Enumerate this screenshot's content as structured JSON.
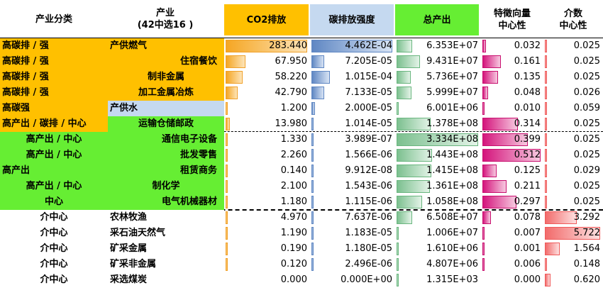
{
  "header": {
    "col_category": "产业分类",
    "col_industry_line1": "产业",
    "col_industry_line2": "(42中选16 )",
    "col_co2": "CO2排放",
    "col_intensity": "碳排放强度",
    "col_output": "总产出",
    "col_eigen_line1": "特徵向量",
    "col_eigen_line2": "中心性",
    "col_between_line1": "介数",
    "col_between_line2": "中心性"
  },
  "colors": {
    "orange": "#ffc000",
    "green": "#66ee33",
    "lightblue": "#c5d9f0",
    "co2_header": "#ffc000",
    "intensity_header": "#c5d9f0",
    "output_header": "#66ee33"
  },
  "rows": [
    {
      "category": "高碳排 / 强",
      "industry": "产供燃气",
      "co2": "283.440",
      "intensity": "4.462E-04",
      "output": "6.353E+07",
      "eigen": "0.032",
      "between": "0.025",
      "co2_v": 283.44,
      "int_v": 0.0004462,
      "out_v": 63530000.0,
      "eig_v": 0.032,
      "btw_v": 0.025,
      "cat_color": "orange",
      "ind_color": "orange",
      "cat_align": "left",
      "ind_align": "left"
    },
    {
      "category": "高碳排 / 强",
      "industry": "住宿餐饮",
      "co2": "67.950",
      "intensity": "7.205E-05",
      "output": "9.431E+07",
      "eigen": "0.161",
      "between": "0.025",
      "co2_v": 67.95,
      "int_v": 7.205e-05,
      "out_v": 94310000.0,
      "eig_v": 0.161,
      "btw_v": 0.025,
      "cat_color": "orange",
      "ind_color": "orange",
      "cat_align": "left",
      "ind_align": "right"
    },
    {
      "category": "高碳排 / 强",
      "industry": "制非金属",
      "co2": "58.220",
      "intensity": "1.015E-04",
      "output": "5.736E+07",
      "eigen": "0.135",
      "between": "0.025",
      "co2_v": 58.22,
      "int_v": 0.0001015,
      "out_v": 57360000.0,
      "eig_v": 0.135,
      "btw_v": 0.025,
      "cat_color": "orange",
      "ind_color": "orange",
      "cat_align": "left",
      "ind_align": "center"
    },
    {
      "category": "高碳排 / 强",
      "industry": "加工金属冶炼",
      "co2": "42.790",
      "intensity": "7.133E-05",
      "output": "5.999E+07",
      "eigen": "0.048",
      "between": "0.026",
      "co2_v": 42.79,
      "int_v": 7.133e-05,
      "out_v": 59990000.0,
      "eig_v": 0.048,
      "btw_v": 0.026,
      "cat_color": "orange",
      "ind_color": "orange",
      "cat_align": "left",
      "ind_align": "center"
    },
    {
      "category": "高碳强",
      "industry": "产供水",
      "co2": "1.200",
      "intensity": "2.000E-05",
      "output": "6.001E+06",
      "eigen": "0.010",
      "between": "0.059",
      "co2_v": 1.2,
      "int_v": 2e-05,
      "out_v": 6001000.0,
      "eig_v": 0.01,
      "btw_v": 0.059,
      "cat_color": "orange",
      "ind_color": "lightblue",
      "cat_align": "left",
      "ind_align": "left"
    },
    {
      "category": "高产出 / 碳排 / 中心",
      "industry": "运输仓储邮政",
      "co2": "13.980",
      "intensity": "1.014E-05",
      "output": "1.378E+08",
      "eigen": "0.314",
      "between": "0.025",
      "co2_v": 13.98,
      "int_v": 1.014e-05,
      "out_v": 137800000.0,
      "eig_v": 0.314,
      "btw_v": 0.025,
      "cat_color": "orange",
      "ind_color": "green",
      "cat_align": "left",
      "ind_align": "center"
    },
    {
      "category": "高产出 / 中心",
      "industry": "通信电子设备",
      "co2": "1.330",
      "intensity": "3.989E-07",
      "output": "3.334E+08",
      "eigen": "0.399",
      "between": "0.025",
      "co2_v": 1.33,
      "int_v": 3.989e-07,
      "out_v": 333400000.0,
      "eig_v": 0.399,
      "btw_v": 0.025,
      "cat_color": "green",
      "ind_color": "green",
      "cat_align": "center",
      "ind_align": "right"
    },
    {
      "category": "高产出 / 中心",
      "industry": "批发零售",
      "co2": "2.260",
      "intensity": "1.566E-06",
      "output": "1.443E+08",
      "eigen": "0.512",
      "between": "0.025",
      "co2_v": 2.26,
      "int_v": 1.566e-06,
      "out_v": 144300000.0,
      "eig_v": 0.512,
      "btw_v": 0.025,
      "cat_color": "green",
      "ind_color": "green",
      "cat_align": "center",
      "ind_align": "right"
    },
    {
      "category": "高产出",
      "industry": "租赁商务",
      "co2": "0.140",
      "intensity": "9.912E-08",
      "output": "1.415E+08",
      "eigen": "0.125",
      "between": "0.029",
      "co2_v": 0.14,
      "int_v": 9.912e-08,
      "out_v": 141500000.0,
      "eig_v": 0.125,
      "btw_v": 0.029,
      "cat_color": "green",
      "ind_color": "green",
      "cat_align": "left",
      "ind_align": "right"
    },
    {
      "category": "高产出 / 中心",
      "industry": "制化学",
      "co2": "2.100",
      "intensity": "1.543E-06",
      "output": "1.361E+08",
      "eigen": "0.211",
      "between": "0.025",
      "co2_v": 2.1,
      "int_v": 1.543e-06,
      "out_v": 136100000.0,
      "eig_v": 0.211,
      "btw_v": 0.025,
      "cat_color": "green",
      "ind_color": "green",
      "cat_align": "center",
      "ind_align": "center"
    },
    {
      "category": "中心",
      "industry": "电气机械器材",
      "co2": "1.180",
      "intensity": "1.115E-06",
      "output": "1.058E+08",
      "eigen": "0.297",
      "between": "0.025",
      "co2_v": 1.18,
      "int_v": 1.115e-06,
      "out_v": 105800000.0,
      "eig_v": 0.297,
      "btw_v": 0.025,
      "cat_color": "green",
      "ind_color": "green",
      "cat_align": "center",
      "ind_align": "right"
    },
    {
      "category": "介中心",
      "industry": "农林牧渔",
      "co2": "4.970",
      "intensity": "7.637E-06",
      "output": "6.508E+07",
      "eigen": "0.078",
      "between": "3.292",
      "co2_v": 4.97,
      "int_v": 7.637e-06,
      "out_v": 65080000.0,
      "eig_v": 0.078,
      "btw_v": 3.292,
      "cat_color": "white",
      "ind_color": "white",
      "cat_align": "center",
      "ind_align": "left"
    },
    {
      "category": "介中心",
      "industry": "采石油天然气",
      "co2": "1.190",
      "intensity": "1.183E-05",
      "output": "1.006E+07",
      "eigen": "0.007",
      "between": "5.722",
      "co2_v": 1.19,
      "int_v": 1.183e-05,
      "out_v": 10060000.0,
      "eig_v": 0.007,
      "btw_v": 5.722,
      "cat_color": "white",
      "ind_color": "white",
      "cat_align": "center",
      "ind_align": "left"
    },
    {
      "category": "介中心",
      "industry": "矿采金属",
      "co2": "0.190",
      "intensity": "1.180E-05",
      "output": "1.610E+06",
      "eigen": "0.001",
      "between": "1.564",
      "co2_v": 0.19,
      "int_v": 1.18e-05,
      "out_v": 1610000.0,
      "eig_v": 0.001,
      "btw_v": 1.564,
      "cat_color": "white",
      "ind_color": "white",
      "cat_align": "center",
      "ind_align": "left"
    },
    {
      "category": "介中心",
      "industry": "矿采非金属",
      "co2": "0.120",
      "intensity": "2.496E-06",
      "output": "4.807E+06",
      "eigen": "0.006",
      "between": "0.148",
      "co2_v": 0.12,
      "int_v": 2.496e-06,
      "out_v": 4807000.0,
      "eig_v": 0.006,
      "btw_v": 0.148,
      "cat_color": "white",
      "ind_color": "white",
      "cat_align": "center",
      "ind_align": "left"
    },
    {
      "category": "介中心",
      "industry": "采选煤炭",
      "co2": "0.000",
      "intensity": "0.000E+00",
      "output": "1.315E+03",
      "eigen": "0.000",
      "between": "0.620",
      "co2_v": 0.0,
      "int_v": 0.0,
      "out_v": 1315,
      "eig_v": 0.0,
      "btw_v": 0.62,
      "cat_color": "white",
      "ind_color": "white",
      "cat_align": "center",
      "ind_align": "left"
    }
  ],
  "scales": {
    "co2_max": 283.44,
    "int_max": 0.0004462,
    "out_max": 333400000.0,
    "eig_max": 0.512,
    "btw_max": 5.722
  }
}
